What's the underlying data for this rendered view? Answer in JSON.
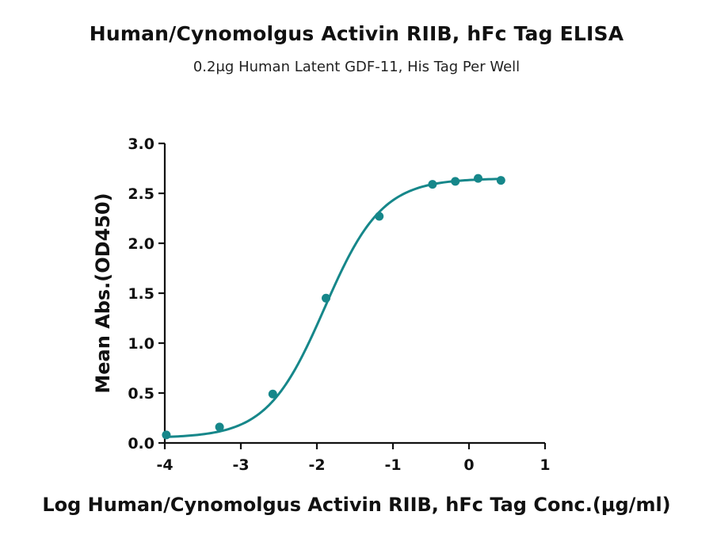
{
  "chart_data": {
    "type": "scatter",
    "title": "Human/Cynomolgus Activin RIIB, hFc Tag ELISA",
    "subtitle": "0.2μg Human Latent GDF-11, His Tag Per Well",
    "xlabel": "Log Human/Cynomolgus Activin RIIB, hFc Tag Conc.(μg/ml)",
    "ylabel": "Mean Abs.(OD450)",
    "xlim": [
      -4,
      1
    ],
    "ylim": [
      0,
      3
    ],
    "x_ticks": [
      -4,
      -3,
      -2,
      -1,
      0,
      1
    ],
    "x_tick_labels": [
      "-4",
      "-3",
      "-2",
      "-1",
      "0",
      "1"
    ],
    "y_ticks": [
      0,
      0.5,
      1,
      1.5,
      2,
      2.5,
      3
    ],
    "y_tick_labels": [
      "0.0",
      "0.5",
      "1.0",
      "1.5",
      "2.0",
      "2.5",
      "3.0"
    ],
    "series": [
      {
        "color": "#16878a",
        "points": [
          {
            "x": -3.98,
            "y": 0.08
          },
          {
            "x": -3.28,
            "y": 0.16
          },
          {
            "x": -2.58,
            "y": 0.49
          },
          {
            "x": -1.88,
            "y": 1.45
          },
          {
            "x": -1.18,
            "y": 2.27
          },
          {
            "x": -0.48,
            "y": 2.59
          },
          {
            "x": -0.18,
            "y": 2.62
          },
          {
            "x": 0.12,
            "y": 2.65
          },
          {
            "x": 0.42,
            "y": 2.63
          }
        ],
        "fit_curve": true
      }
    ],
    "grid": false,
    "legend": "none"
  }
}
